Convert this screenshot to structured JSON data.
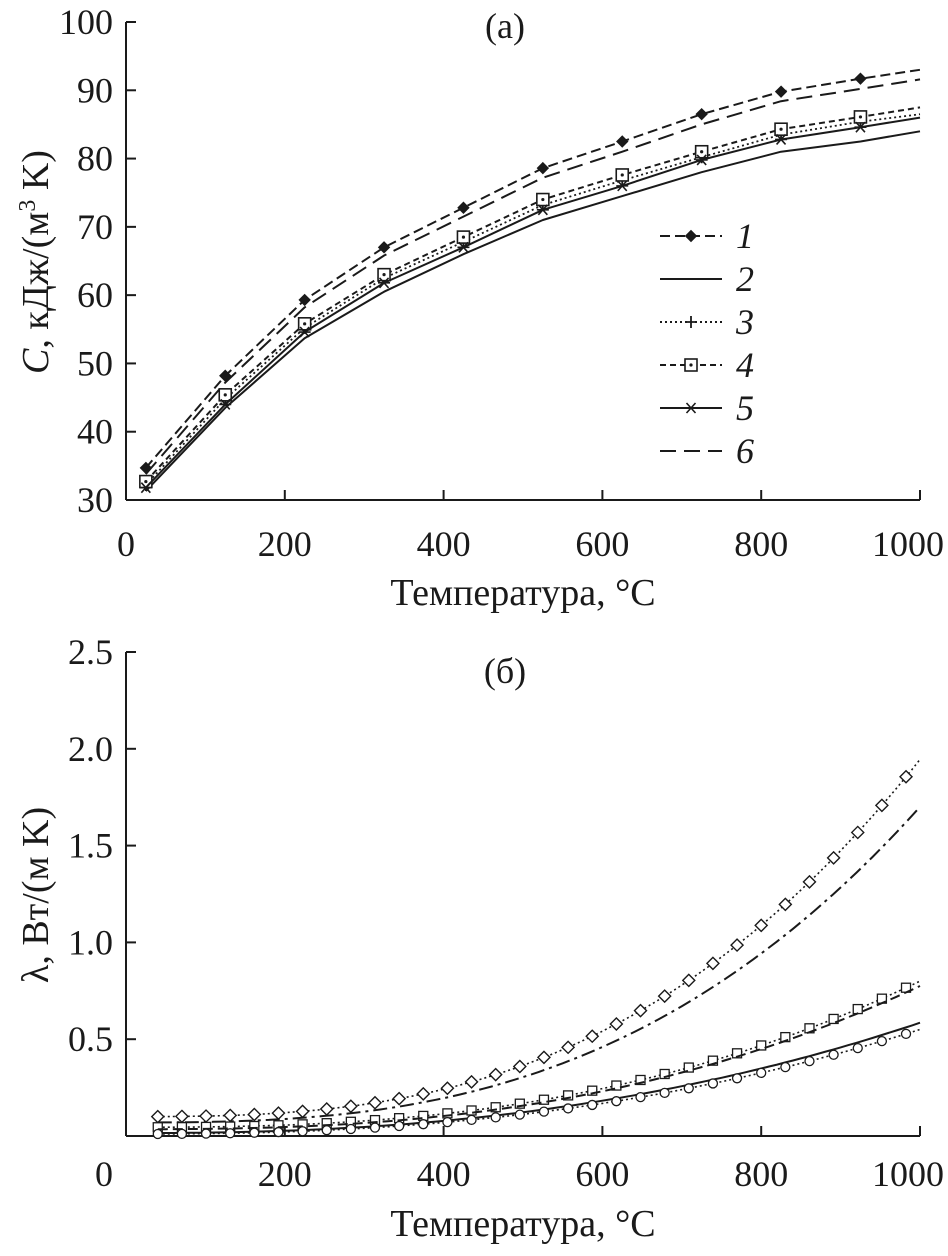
{
  "chart_data": [
    {
      "type": "line",
      "title": "(a)",
      "xlabel": "Температура, °C",
      "ylabel_prefix": "C",
      "ylabel_units": ", кДж/(м",
      "ylabel_sup": "3",
      "ylabel_units_end": " K)",
      "xlim": [
        0,
        1000
      ],
      "ylim": [
        30,
        100
      ],
      "xticks": [
        0,
        200,
        400,
        600,
        800,
        1000
      ],
      "yticks": [
        30,
        40,
        50,
        60,
        70,
        80,
        90,
        100
      ],
      "legend": [
        "1",
        "2",
        "3",
        "4",
        "5",
        "6"
      ],
      "legend_position": "center-right",
      "marker_x": [
        25,
        125,
        225,
        325,
        425,
        525,
        625,
        725,
        825,
        925
      ],
      "series": [
        {
          "name": "1",
          "style": "dashed",
          "marker": "diamond-filled",
          "x": [
            25,
            125,
            225,
            325,
            425,
            525,
            625,
            725,
            825,
            925,
            1000
          ],
          "y": [
            34.7,
            48.2,
            59.3,
            67,
            72.8,
            78.6,
            82.5,
            86.5,
            89.8,
            91.7,
            93
          ]
        },
        {
          "name": "2",
          "style": "solid",
          "marker": "none",
          "x": [
            25,
            125,
            225,
            325,
            425,
            525,
            625,
            725,
            825,
            925,
            1000
          ],
          "y": [
            31.3,
            43.5,
            53.7,
            60.5,
            66,
            71,
            74.5,
            78,
            81,
            82.5,
            84
          ]
        },
        {
          "name": "3",
          "style": "dotted",
          "marker": "plus",
          "x": [
            25,
            125,
            225,
            325,
            425,
            525,
            625,
            725,
            825,
            925,
            1000
          ],
          "y": [
            32.2,
            44.8,
            55.2,
            62.5,
            67.8,
            73.2,
            76.8,
            80.2,
            83.5,
            85.4,
            86.5
          ]
        },
        {
          "name": "4",
          "style": "dashed-short",
          "marker": "square-dot",
          "x": [
            25,
            125,
            225,
            325,
            425,
            525,
            625,
            725,
            825,
            925,
            1000
          ],
          "y": [
            32.7,
            45.4,
            55.8,
            63,
            68.5,
            74,
            77.6,
            81,
            84.3,
            86.1,
            87.5
          ]
        },
        {
          "name": "5",
          "style": "solid",
          "marker": "asterisk",
          "x": [
            25,
            125,
            225,
            325,
            425,
            525,
            625,
            725,
            825,
            925,
            1000
          ],
          "y": [
            31.8,
            44,
            54.6,
            61.8,
            67,
            72.5,
            76,
            79.8,
            82.8,
            84.6,
            86
          ]
        },
        {
          "name": "6",
          "style": "long-dash",
          "marker": "none",
          "x": [
            25,
            125,
            225,
            325,
            425,
            525,
            625,
            725,
            825,
            925,
            1000
          ],
          "y": [
            33.8,
            47.2,
            58.2,
            65.8,
            71.5,
            77.2,
            81,
            85,
            88.4,
            90.2,
            91.6
          ]
        }
      ]
    },
    {
      "type": "line",
      "title": "(б)",
      "xlabel": "Температура, °C",
      "ylabel": "λ, Вт/(м K)",
      "xlim": [
        0,
        1000
      ],
      "ylim": [
        0,
        2.5
      ],
      "xticks": [
        0,
        200,
        400,
        600,
        800,
        1000
      ],
      "yticks": [
        0.5,
        1.0,
        1.5,
        2.0,
        2.5
      ],
      "y_tick_labels": [
        "0.5",
        "1.0",
        "1.5",
        "2.0",
        "2.5"
      ],
      "x_start": 40,
      "series": [
        {
          "name": "diamond-dotted",
          "style": "dotted",
          "marker": "diamond-open",
          "a": 0.1,
          "b": 1.845,
          "p": 2.8
        },
        {
          "name": "dash-dot",
          "style": "dash-dot",
          "marker": "none",
          "a": 0.07,
          "b": 1.63,
          "p": 2.8
        },
        {
          "name": "square-dotted",
          "style": "dotted",
          "marker": "square-open",
          "a": 0.045,
          "b": 0.755,
          "p": 2.6
        },
        {
          "name": "long-dash",
          "style": "dashed",
          "marker": "none",
          "a": 0.035,
          "b": 0.74,
          "p": 2.6
        },
        {
          "name": "solid",
          "style": "solid",
          "marker": "none",
          "a": 0.015,
          "b": 0.57,
          "p": 2.4
        },
        {
          "name": "circle-dotted",
          "style": "dotted",
          "marker": "circle-open",
          "a": 0.01,
          "b": 0.54,
          "p": 2.4
        }
      ]
    }
  ]
}
